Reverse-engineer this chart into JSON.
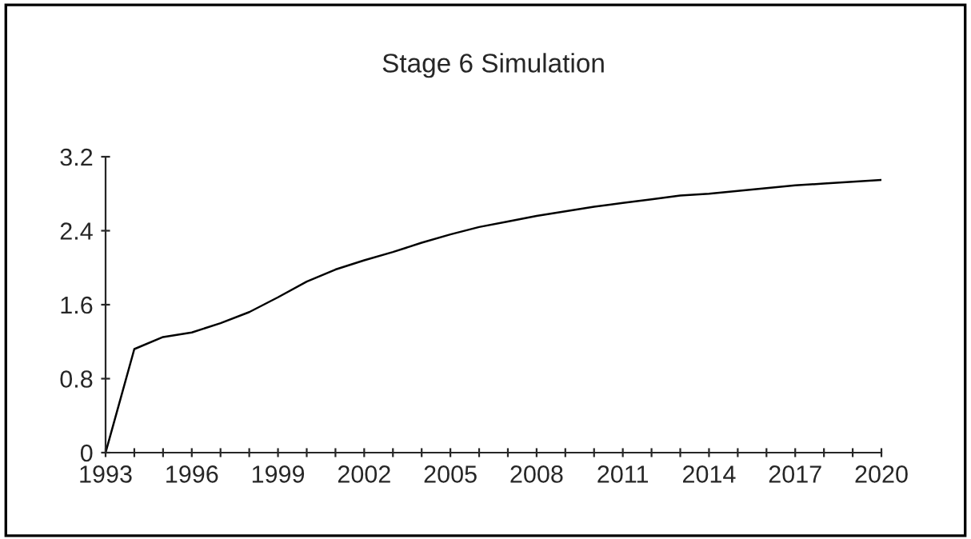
{
  "chart_data": {
    "type": "line",
    "title": "Stage 6 Simulation",
    "x": [
      1993,
      1994,
      1995,
      1996,
      1997,
      1998,
      1999,
      2000,
      2001,
      2002,
      2003,
      2004,
      2005,
      2006,
      2007,
      2008,
      2009,
      2010,
      2011,
      2012,
      2013,
      2014,
      2015,
      2016,
      2017,
      2018,
      2019,
      2020
    ],
    "series": [
      {
        "color": "#000000",
        "values": [
          0,
          1.12,
          1.25,
          1.3,
          1.4,
          1.52,
          1.68,
          1.85,
          1.98,
          2.08,
          2.17,
          2.27,
          2.36,
          2.44,
          2.5,
          2.56,
          2.61,
          2.66,
          2.7,
          2.74,
          2.78,
          2.8,
          2.83,
          2.86,
          2.89,
          2.91,
          2.93,
          2.95
        ]
      }
    ],
    "xlim": [
      1993,
      2020
    ],
    "xticks": [
      1993,
      {
        "value": 1994,
        "label": null
      },
      {
        "value": 1995,
        "label": null
      },
      1996,
      {
        "value": 1997,
        "label": null
      },
      {
        "value": 1998,
        "label": null
      },
      1999,
      {
        "value": 2000,
        "label": null
      },
      {
        "value": 2001,
        "label": null
      },
      2002,
      {
        "value": 2003,
        "label": null
      },
      {
        "value": 2004,
        "label": null
      },
      2005,
      {
        "value": 2006,
        "label": null
      },
      {
        "value": 2007,
        "label": null
      },
      2008,
      {
        "value": 2009,
        "label": null
      },
      {
        "value": 2010,
        "label": null
      },
      2011,
      {
        "value": 2012,
        "label": null
      },
      {
        "value": 2013,
        "label": null
      },
      2014,
      {
        "value": 2015,
        "label": null
      },
      {
        "value": 2016,
        "label": null
      },
      2017,
      {
        "value": 2018,
        "label": null
      },
      {
        "value": 2019,
        "label": null
      },
      2020
    ],
    "ylim": [
      0,
      3.2
    ],
    "yticks": [
      0,
      0.8,
      1.6,
      2.4,
      3.2
    ],
    "grid": false,
    "legend": false,
    "line_style": "solid",
    "marker": "none"
  }
}
